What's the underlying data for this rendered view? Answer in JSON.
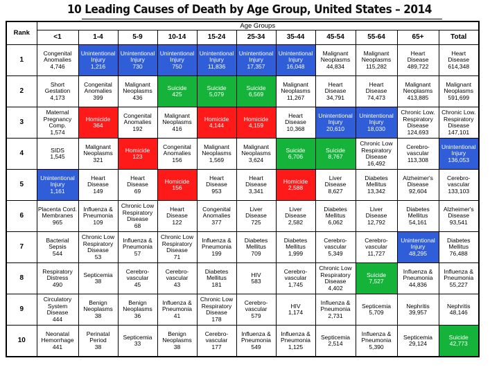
{
  "title": "10 Leading Causes of Death by Age Group, United States – 2014",
  "age_groups_label": "Age Groups",
  "rank_label": "Rank",
  "colors": {
    "unintentional_injury": "#2f5ed8",
    "homicide": "#ff1a1a",
    "suicide": "#16b33a"
  },
  "columns": [
    "<1",
    "1-4",
    "5-9",
    "10-14",
    "15-24",
    "25-34",
    "35-44",
    "45-54",
    "55-64",
    "65+",
    "Total"
  ],
  "rows": [
    {
      "rank": "1",
      "cells": [
        {
          "name": "Congenital\nAnomalies",
          "value": "4,746",
          "color": ""
        },
        {
          "name": "Unintentional\nInjury",
          "value": "1,216",
          "color": "blue"
        },
        {
          "name": "Unintentional\nInjury",
          "value": "730",
          "color": "blue"
        },
        {
          "name": "Unintentional\nInjury",
          "value": "750",
          "color": "blue"
        },
        {
          "name": "Unintentional\nInjury",
          "value": "11,836",
          "color": "blue"
        },
        {
          "name": "Unintentional\nInjury",
          "value": "17,357",
          "color": "blue"
        },
        {
          "name": "Unintentional\nInjury",
          "value": "16,048",
          "color": "blue"
        },
        {
          "name": "Malignant\nNeoplasms",
          "value": "44,834",
          "color": ""
        },
        {
          "name": "Malignant\nNeoplasms",
          "value": "115,282",
          "color": ""
        },
        {
          "name": "Heart\nDisease",
          "value": "489,722",
          "color": ""
        },
        {
          "name": "Heart\nDisease",
          "value": "614,348",
          "color": ""
        }
      ]
    },
    {
      "rank": "2",
      "cells": [
        {
          "name": "Short\nGestation",
          "value": "4,173",
          "color": ""
        },
        {
          "name": "Congenital\nAnomalies",
          "value": "399",
          "color": ""
        },
        {
          "name": "Malignant\nNeoplasms",
          "value": "436",
          "color": ""
        },
        {
          "name": "Suicide",
          "value": "425",
          "color": "green"
        },
        {
          "name": "Suicide",
          "value": "5,079",
          "color": "green"
        },
        {
          "name": "Suicide",
          "value": "6,569",
          "color": "green"
        },
        {
          "name": "Malignant\nNeoplasms",
          "value": "11,267",
          "color": ""
        },
        {
          "name": "Heart\nDisease",
          "value": "34,791",
          "color": ""
        },
        {
          "name": "Heart\nDisease",
          "value": "74,473",
          "color": ""
        },
        {
          "name": "Malignant\nNeoplasms",
          "value": "413,885",
          "color": ""
        },
        {
          "name": "Malignant\nNeoplasms",
          "value": "591,699",
          "color": ""
        }
      ]
    },
    {
      "rank": "3",
      "cells": [
        {
          "name": "Maternal\nPregnancy\nComp.",
          "value": "1,574",
          "color": ""
        },
        {
          "name": "Homicide",
          "value": "364",
          "color": "red"
        },
        {
          "name": "Congenital\nAnomalies",
          "value": "192",
          "color": ""
        },
        {
          "name": "Malignant\nNeoplasms",
          "value": "416",
          "color": ""
        },
        {
          "name": "Homicide",
          "value": "4,144",
          "color": "red"
        },
        {
          "name": "Homicide",
          "value": "4,159",
          "color": "red"
        },
        {
          "name": "Heart\nDisease",
          "value": "10,368",
          "color": ""
        },
        {
          "name": "Unintentional\nInjury",
          "value": "20,610",
          "color": "blue"
        },
        {
          "name": "Unintentional\nInjury",
          "value": "18,030",
          "color": "blue"
        },
        {
          "name": "Chronic Low.\nRespiratory\nDisease",
          "value": "124,693",
          "color": ""
        },
        {
          "name": "Chronic Low.\nRespiratory\nDisease",
          "value": "147,101",
          "color": ""
        }
      ]
    },
    {
      "rank": "4",
      "cells": [
        {
          "name": "SIDS",
          "value": "1,545",
          "color": ""
        },
        {
          "name": "Malignant\nNeoplasms",
          "value": "321",
          "color": ""
        },
        {
          "name": "Homicide",
          "value": "123",
          "color": "red"
        },
        {
          "name": "Congenital\nAnomalies",
          "value": "156",
          "color": ""
        },
        {
          "name": "Malignant\nNeoplasms",
          "value": "1,569",
          "color": ""
        },
        {
          "name": "Malignant\nNeoplasms",
          "value": "3,624",
          "color": ""
        },
        {
          "name": "Suicide",
          "value": "6,706",
          "color": "green"
        },
        {
          "name": "Suicide",
          "value": "8,767",
          "color": "green"
        },
        {
          "name": "Chronic Low\nRespiratory\nDisease",
          "value": "16,492",
          "color": ""
        },
        {
          "name": "Cerebro-\nvascular",
          "value": "113,308",
          "color": ""
        },
        {
          "name": "Unintentional\nInjury",
          "value": "136,053",
          "color": "blue"
        }
      ]
    },
    {
      "rank": "5",
      "cells": [
        {
          "name": "Unintentional\nInjury",
          "value": "1,161",
          "color": "blue"
        },
        {
          "name": "Heart\nDisease",
          "value": "149",
          "color": ""
        },
        {
          "name": "Heart\nDisease",
          "value": "69",
          "color": ""
        },
        {
          "name": "Homicide",
          "value": "156",
          "color": "red"
        },
        {
          "name": "Heart\nDisease",
          "value": "953",
          "color": ""
        },
        {
          "name": "Heart\nDisease",
          "value": "3,341",
          "color": ""
        },
        {
          "name": "Homicide",
          "value": "2,588",
          "color": "red"
        },
        {
          "name": "Liver\nDisease",
          "value": "8,627",
          "color": ""
        },
        {
          "name": "Diabetes\nMellitus",
          "value": "13,342",
          "color": ""
        },
        {
          "name": "Alzheimer's\nDisease",
          "value": "92,604",
          "color": ""
        },
        {
          "name": "Cerebro-\nvascular",
          "value": "133,103",
          "color": ""
        }
      ]
    },
    {
      "rank": "6",
      "cells": [
        {
          "name": "Placenta Cord.\nMembranes",
          "value": "965",
          "color": ""
        },
        {
          "name": "Influenza &\nPneumonia",
          "value": "109",
          "color": ""
        },
        {
          "name": "Chronic Low\nRespiratory\nDisease",
          "value": "68",
          "color": ""
        },
        {
          "name": "Heart\nDisease",
          "value": "122",
          "color": ""
        },
        {
          "name": "Congenital\nAnomalies",
          "value": "377",
          "color": ""
        },
        {
          "name": "Liver\nDisease",
          "value": "725",
          "color": ""
        },
        {
          "name": "Liver\nDisease",
          "value": "2,582",
          "color": ""
        },
        {
          "name": "Diabetes\nMellitus",
          "value": "6,062",
          "color": ""
        },
        {
          "name": "Liver\nDisease",
          "value": "12,792",
          "color": ""
        },
        {
          "name": "Diabetes\nMellitus",
          "value": "54,161",
          "color": ""
        },
        {
          "name": "Alzheimer's\nDisease",
          "value": "93,541",
          "color": ""
        }
      ]
    },
    {
      "rank": "7",
      "cells": [
        {
          "name": "Bacterial\nSepsis",
          "value": "544",
          "color": ""
        },
        {
          "name": "Chronic Low\nRespiratory\nDisease",
          "value": "53",
          "color": ""
        },
        {
          "name": "Influenza &\nPneumonia",
          "value": "57",
          "color": ""
        },
        {
          "name": "Chronic Low\nRespiratory\nDisease",
          "value": "71",
          "color": ""
        },
        {
          "name": "Influenza &\nPneumonia",
          "value": "199",
          "color": ""
        },
        {
          "name": "Diabetes\nMellitus",
          "value": "709",
          "color": ""
        },
        {
          "name": "Diabetes\nMellitus",
          "value": "1,999",
          "color": ""
        },
        {
          "name": "Cerebro-\nvascular",
          "value": "5,349",
          "color": ""
        },
        {
          "name": "Cerebro-\nvascular",
          "value": "11,727",
          "color": ""
        },
        {
          "name": "Unintentional\nInjury",
          "value": "48,295",
          "color": "blue"
        },
        {
          "name": "Diabetes\nMellitus",
          "value": "76,488",
          "color": ""
        }
      ]
    },
    {
      "rank": "8",
      "cells": [
        {
          "name": "Respiratory\nDistress",
          "value": "490",
          "color": ""
        },
        {
          "name": "Septicemia",
          "value": "38",
          "color": ""
        },
        {
          "name": "Cerebro-\nvascular",
          "value": "45",
          "color": ""
        },
        {
          "name": "Cerebro-\nvascular",
          "value": "43",
          "color": ""
        },
        {
          "name": "Diabetes\nMellitus",
          "value": "181",
          "color": ""
        },
        {
          "name": "HIV",
          "value": "583",
          "color": ""
        },
        {
          "name": "Cerebro-\nvascular",
          "value": "1,745",
          "color": ""
        },
        {
          "name": "Chronic Low\nRespiratory\nDisease",
          "value": "4,402",
          "color": ""
        },
        {
          "name": "Suicide",
          "value": "7,527",
          "color": "green"
        },
        {
          "name": "Influenza &\nPneumonia",
          "value": "44,836",
          "color": ""
        },
        {
          "name": "Influenza &\nPneumonia",
          "value": "55,227",
          "color": ""
        }
      ]
    },
    {
      "rank": "9",
      "cells": [
        {
          "name": "Circulatory\nSystem\nDisease",
          "value": "444",
          "color": ""
        },
        {
          "name": "Benign\nNeoplasms",
          "value": "38",
          "color": ""
        },
        {
          "name": "Benign\nNeoplasms",
          "value": "36",
          "color": ""
        },
        {
          "name": "Influenza &\nPneumonia",
          "value": "41",
          "color": ""
        },
        {
          "name": "Chronic Low\nRespiratory\nDisease",
          "value": "178",
          "color": ""
        },
        {
          "name": "Cerebro-\nvascular",
          "value": "579",
          "color": ""
        },
        {
          "name": "HIV",
          "value": "1,174",
          "color": ""
        },
        {
          "name": "Influenza &\nPneumonia",
          "value": "2,731",
          "color": ""
        },
        {
          "name": "Septicemia",
          "value": "5,709",
          "color": ""
        },
        {
          "name": "Nephritis",
          "value": "39,957",
          "color": ""
        },
        {
          "name": "Nephritis",
          "value": "48,146",
          "color": ""
        }
      ]
    },
    {
      "rank": "10",
      "cells": [
        {
          "name": "Neonatal\nHemorrhage",
          "value": "441",
          "color": ""
        },
        {
          "name": "Perinatal Period",
          "value": "38",
          "color": ""
        },
        {
          "name": "Septicemia",
          "value": "33",
          "color": ""
        },
        {
          "name": "Benign\nNeoplasms",
          "value": "38",
          "color": ""
        },
        {
          "name": "Cerebro-\nvascular",
          "value": "177",
          "color": ""
        },
        {
          "name": "Influenza &\nPneumonia",
          "value": "549",
          "color": ""
        },
        {
          "name": "Influenza &\nPneumonia",
          "value": "1,125",
          "color": ""
        },
        {
          "name": "Septicemia",
          "value": "2,514",
          "color": ""
        },
        {
          "name": "Influenza &\nPneumonia",
          "value": "5,390",
          "color": ""
        },
        {
          "name": "Septicemia",
          "value": "29,124",
          "color": ""
        },
        {
          "name": "Suicide",
          "value": "42,773",
          "color": "green"
        }
      ]
    }
  ]
}
